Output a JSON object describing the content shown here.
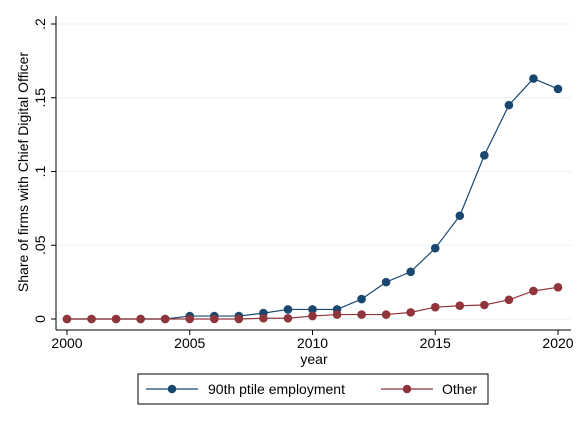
{
  "chart_data": {
    "type": "line",
    "title": "",
    "xlabel": "year",
    "ylabel": "Share of firms with Chief Digital Officer",
    "xlim": [
      2000,
      2020
    ],
    "ylim": [
      0,
      0.2
    ],
    "x_ticks": [
      2000,
      2005,
      2010,
      2015,
      2020
    ],
    "x_tick_labels": [
      "2000",
      "2005",
      "2010",
      "2015",
      "2020"
    ],
    "y_ticks": [
      0,
      0.05,
      0.1,
      0.15,
      0.2
    ],
    "y_tick_labels": [
      "0",
      ".05",
      ".1",
      ".15",
      ".2"
    ],
    "grid": true,
    "legend_position": "bottom",
    "x": [
      2000,
      2001,
      2002,
      2003,
      2004,
      2005,
      2006,
      2007,
      2008,
      2009,
      2010,
      2011,
      2012,
      2013,
      2014,
      2015,
      2016,
      2017,
      2018,
      2019,
      2020
    ],
    "series": [
      {
        "name": "90th ptile employment",
        "color": "#1a476f",
        "values": [
          0,
          0,
          0,
          0,
          0,
          0.002,
          0.002,
          0.002,
          0.004,
          0.0065,
          0.0065,
          0.0065,
          0.0135,
          0.025,
          0.032,
          0.048,
          0.07,
          0.111,
          0.145,
          0.163,
          0.156
        ]
      },
      {
        "name": "Other",
        "color": "#90353b",
        "values": [
          0,
          0,
          0,
          0,
          0,
          0,
          0,
          0,
          0.0005,
          0.0005,
          0.002,
          0.003,
          0.003,
          0.003,
          0.0045,
          0.008,
          0.009,
          0.0095,
          0.013,
          0.019,
          0.0215
        ]
      }
    ]
  }
}
